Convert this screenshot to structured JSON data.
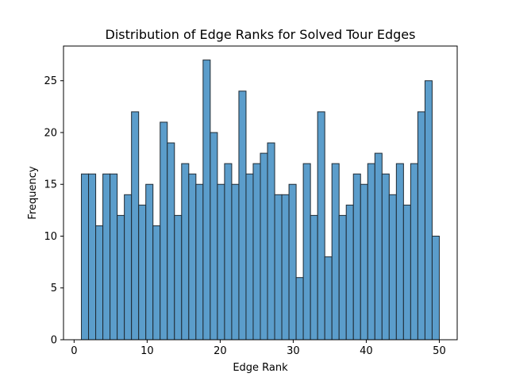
{
  "chart_data": {
    "type": "bar",
    "title": "Distribution of Edge Ranks for Solved Tour Edges",
    "xlabel": "Edge Rank",
    "ylabel": "Frequency",
    "xlim": [
      -1.45,
      52.45
    ],
    "ylim": [
      0,
      28.35
    ],
    "bin_start": 1,
    "bin_width": 0.98,
    "values": [
      16,
      16,
      11,
      16,
      16,
      12,
      14,
      22,
      13,
      15,
      11,
      21,
      19,
      12,
      17,
      16,
      15,
      27,
      20,
      15,
      17,
      15,
      24,
      16,
      17,
      18,
      19,
      14,
      14,
      15,
      6,
      17,
      12,
      22,
      8,
      17,
      12,
      13,
      16,
      15,
      17,
      18,
      16,
      14,
      17,
      13,
      17,
      22,
      25,
      10
    ],
    "x_ticks": [
      0,
      10,
      20,
      30,
      40,
      50
    ],
    "y_ticks": [
      0,
      5,
      10,
      15,
      20,
      25
    ],
    "bar_color": "#5b9dcb",
    "edge_color": "#1f2a33",
    "grid": false,
    "legend": "none"
  }
}
